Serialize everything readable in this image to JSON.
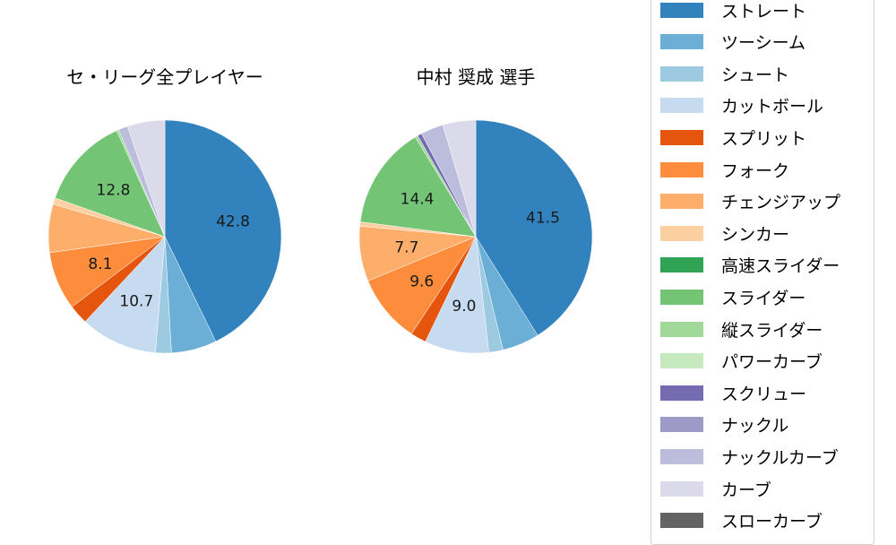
{
  "chart_data": [
    {
      "type": "pie",
      "title": "セ・リーグ全プレイヤー",
      "categories": [
        "ストレート",
        "ツーシーム",
        "シュート",
        "カットボール",
        "スプリット",
        "フォーク",
        "チェンジアップ",
        "シンカー",
        "スライダー",
        "縦スライダー",
        "ナックルカーブ",
        "カーブ"
      ],
      "values": [
        42.8,
        6.3,
        2.2,
        10.7,
        2.7,
        8.1,
        6.7,
        0.9,
        12.8,
        0.3,
        1.3,
        5.2
      ],
      "labels_shown": [
        "42.8",
        "10.7",
        "8.1",
        "12.8"
      ],
      "start_angle": "top, clockwise"
    },
    {
      "type": "pie",
      "title": "中村 奨成  選手",
      "categories": [
        "ストレート",
        "ツーシーム",
        "シュート",
        "カットボール",
        "スプリット",
        "フォーク",
        "チェンジアップ",
        "シンカー",
        "スライダー",
        "縦スライダー",
        "スクリュー",
        "ナックルカーブ",
        "カーブ"
      ],
      "values": [
        41.5,
        5.2,
        2.0,
        9.0,
        2.2,
        9.6,
        7.7,
        0.6,
        14.4,
        0.4,
        0.6,
        3.2,
        4.6
      ],
      "labels_shown": [
        "41.5",
        "9.0",
        "9.6",
        "7.7",
        "14.4"
      ],
      "start_angle": "top, clockwise"
    }
  ],
  "titles": {
    "left": "セ・リーグ全プレイヤー",
    "right": "中村 奨成  選手"
  },
  "legend": [
    {
      "label": "ストレート",
      "color": "#3182bd"
    },
    {
      "label": "ツーシーム",
      "color": "#6baed6"
    },
    {
      "label": "シュート",
      "color": "#9ecae1"
    },
    {
      "label": "カットボール",
      "color": "#c6dbef"
    },
    {
      "label": "スプリット",
      "color": "#e6550d"
    },
    {
      "label": "フォーク",
      "color": "#fd8d3c"
    },
    {
      "label": "チェンジアップ",
      "color": "#fdae6b"
    },
    {
      "label": "シンカー",
      "color": "#fdd0a2"
    },
    {
      "label": "高速スライダー",
      "color": "#31a354"
    },
    {
      "label": "スライダー",
      "color": "#74c476"
    },
    {
      "label": "縦スライダー",
      "color": "#a1d99b"
    },
    {
      "label": "パワーカーブ",
      "color": "#c7e9c0"
    },
    {
      "label": "スクリュー",
      "color": "#756bb1"
    },
    {
      "label": "ナックル",
      "color": "#9e9ac8"
    },
    {
      "label": "ナックルカーブ",
      "color": "#bcbddc"
    },
    {
      "label": "カーブ",
      "color": "#dadaeb"
    },
    {
      "label": "スローカーブ",
      "color": "#636363"
    }
  ]
}
